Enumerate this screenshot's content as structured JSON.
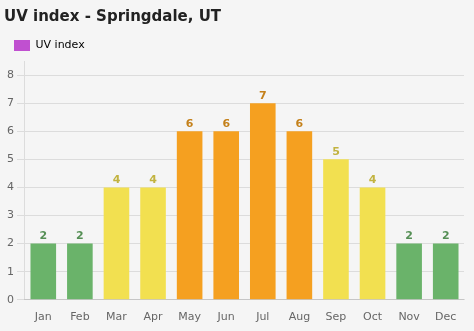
{
  "chart_data": {
    "type": "bar",
    "title": "UV index - Springdale, UT",
    "categories": [
      "Jan",
      "Feb",
      "Mar",
      "Apr",
      "May",
      "Jun",
      "Jul",
      "Aug",
      "Sep",
      "Oct",
      "Nov",
      "Dec"
    ],
    "series": [
      {
        "name": "UV index",
        "color": "#c050d0",
        "colors": [
          "#6ab36a",
          "#6ab36a",
          "#f2e050",
          "#f2e050",
          "#f5a020",
          "#f5a020",
          "#f5a020",
          "#f5a020",
          "#f2e050",
          "#f2e050",
          "#6ab36a",
          "#6ab36a"
        ],
        "values": [
          2,
          2,
          4,
          4,
          6,
          6,
          7,
          6,
          5,
          4,
          2,
          2
        ]
      }
    ],
    "ylim": [
      0,
      8.5
    ],
    "yticks": [
      0,
      1,
      2,
      3,
      4,
      5,
      6,
      7,
      8
    ],
    "grid": true,
    "legend": "top",
    "data_labels": true
  }
}
